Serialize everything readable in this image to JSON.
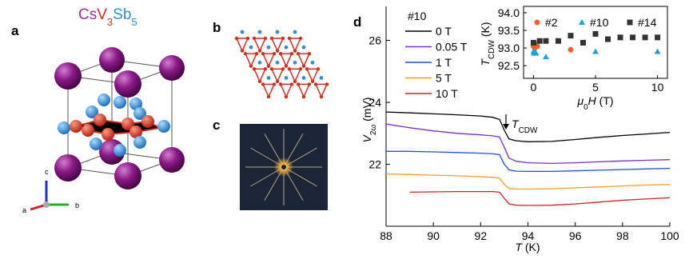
{
  "panels": {
    "a": {
      "label": "a",
      "title": [
        "Cs",
        "V",
        "3",
        "Sb",
        "5"
      ],
      "axes": [
        "a",
        "b",
        "c"
      ]
    },
    "b": {
      "label": "b"
    },
    "c": {
      "label": "c"
    }
  },
  "chart_data": [
    {
      "type": "line",
      "label": "d",
      "x": [
        88,
        89,
        90,
        91,
        92,
        92.5,
        92.8,
        93,
        93.2,
        93.5,
        94,
        95,
        96,
        97,
        98,
        99,
        100
      ],
      "series": [
        {
          "name": "0 T",
          "color": "#000000",
          "values": [
            23.69,
            23.66,
            23.63,
            23.6,
            23.56,
            23.52,
            23.45,
            23.1,
            22.82,
            22.76,
            22.73,
            22.74,
            22.8,
            22.87,
            22.93,
            22.98,
            23.03
          ]
        },
        {
          "name": "0.05 T",
          "color": "#7a2fd0",
          "values": [
            23.3,
            23.18,
            23.08,
            23.0,
            22.95,
            22.92,
            22.88,
            22.55,
            22.2,
            22.1,
            22.05,
            22.03,
            22.05,
            22.08,
            22.11,
            22.13,
            22.15
          ]
        },
        {
          "name": "1 T",
          "color": "#1f4fe0",
          "values": [
            22.42,
            22.42,
            22.4,
            22.38,
            22.36,
            22.34,
            22.31,
            22.0,
            21.82,
            21.78,
            21.77,
            21.77,
            21.79,
            21.81,
            21.83,
            21.85,
            21.87
          ]
        },
        {
          "name": "5 T",
          "color": "#f0a020",
          "values": [
            21.69,
            21.67,
            21.65,
            21.63,
            21.6,
            21.58,
            21.55,
            21.35,
            21.22,
            21.2,
            21.2,
            21.21,
            21.24,
            21.27,
            21.3,
            21.33,
            21.35
          ]
        },
        {
          "name": "10 T",
          "color": "#d62020",
          "values": [
            null,
            21.1,
            21.11,
            21.12,
            21.12,
            21.12,
            21.1,
            20.9,
            20.72,
            20.68,
            20.67,
            20.68,
            20.72,
            20.78,
            20.84,
            20.88,
            20.92
          ]
        }
      ],
      "xlim": [
        88,
        100
      ],
      "xticks": [
        88,
        90,
        92,
        94,
        96,
        98,
        100
      ],
      "ylim": [
        20,
        27.1
      ],
      "yticks": [
        22,
        24,
        26
      ],
      "x_label": [
        "T",
        " (K)"
      ],
      "y_label": [
        "V",
        "2ω",
        " (mV)"
      ],
      "legend_title": "#10",
      "annotation": [
        "T",
        "CDW"
      ]
    },
    {
      "type": "scatter",
      "series": [
        {
          "name": "#2",
          "color": "#f0602a",
          "marker": "circle",
          "x": [
            0,
            0.1,
            0.2,
            0.3,
            3
          ],
          "values": [
            93.05,
            93.0,
            93.1,
            93.05,
            92.95
          ]
        },
        {
          "name": "#10",
          "color": "#20a0e0",
          "marker": "triangle",
          "x": [
            0,
            0.05,
            0.1,
            0.2,
            1,
            5,
            10
          ],
          "values": [
            92.9,
            92.85,
            92.9,
            92.85,
            92.75,
            92.9,
            92.9
          ]
        },
        {
          "name": "#14",
          "color": "#333333",
          "marker": "square",
          "x": [
            0,
            0.5,
            1,
            2,
            3,
            4,
            5,
            6,
            7,
            8,
            9,
            10
          ],
          "values": [
            93.15,
            93.2,
            93.2,
            93.2,
            93.35,
            93.15,
            93.4,
            93.25,
            93.3,
            93.3,
            93.3,
            93.3
          ]
        }
      ],
      "xlim": [
        -0.8,
        10.8
      ],
      "xticks": [
        0,
        5,
        10
      ],
      "ylim": [
        92.14,
        94.18
      ],
      "yticks": [
        92.5,
        {
          "value": 93,
          "label": "93.0"
        },
        93.5,
        {
          "value": 94,
          "label": "94.0"
        }
      ],
      "x_label": [
        "μ",
        "0",
        "H",
        " (T)"
      ],
      "y_label": [
        "T",
        "CDW",
        " (K)"
      ]
    }
  ]
}
